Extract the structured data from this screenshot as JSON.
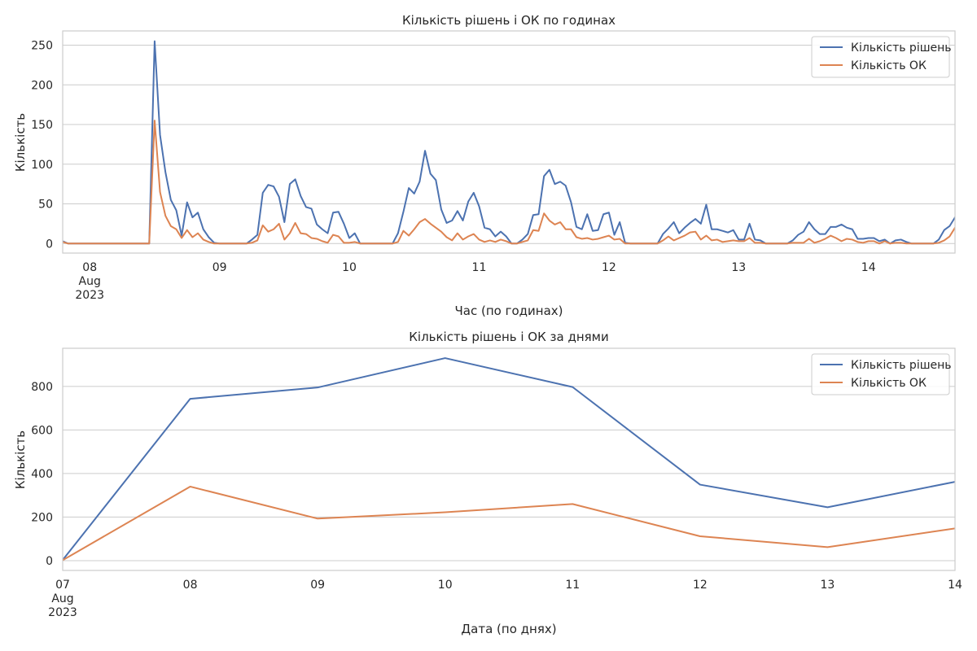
{
  "chart_data": [
    {
      "type": "line",
      "title": "Кількість рішень і ОК по годинах",
      "xlabel": "Час (по годинах)",
      "ylabel": "Кількість",
      "x_start": "2023-08-07 19:00",
      "x_step": "1 hour",
      "xlim": [
        "2023-08-07 19:00",
        "2023-08-14 16:00"
      ],
      "ylim": [
        -12,
        268
      ],
      "yticks": [
        0,
        50,
        100,
        150,
        200,
        250
      ],
      "xticks": [
        {
          "x": "2023-08-08 00:00",
          "label": "08",
          "sublabel1": "Aug",
          "sublabel2": "2023"
        },
        {
          "x": "2023-08-09 00:00",
          "label": "09"
        },
        {
          "x": "2023-08-10 00:00",
          "label": "10"
        },
        {
          "x": "2023-08-11 00:00",
          "label": "11"
        },
        {
          "x": "2023-08-12 00:00",
          "label": "12"
        },
        {
          "x": "2023-08-13 00:00",
          "label": "13"
        },
        {
          "x": "2023-08-14 00:00",
          "label": "14"
        }
      ],
      "grid": "horizontal",
      "legend_position": "top-right",
      "series": [
        {
          "name": "Кількість рішень",
          "color": "#4c72b0",
          "values": [
            3,
            0,
            0,
            0,
            0,
            0,
            0,
            0,
            0,
            0,
            0,
            0,
            0,
            0,
            0,
            0,
            0,
            255,
            137,
            90,
            55,
            42,
            10,
            52,
            33,
            39,
            18,
            8,
            1,
            0,
            0,
            0,
            0,
            0,
            0,
            5,
            11,
            64,
            74,
            72,
            59,
            27,
            75,
            81,
            60,
            46,
            44,
            24,
            18,
            13,
            39,
            40,
            25,
            7,
            13,
            0,
            0,
            0,
            0,
            0,
            0,
            0,
            13,
            40,
            70,
            63,
            78,
            117,
            88,
            80,
            43,
            26,
            29,
            41,
            29,
            53,
            64,
            47,
            20,
            18,
            9,
            15,
            9,
            0,
            0,
            5,
            12,
            36,
            37,
            85,
            93,
            75,
            78,
            73,
            52,
            21,
            18,
            37,
            16,
            17,
            37,
            39,
            11,
            27,
            1,
            0,
            0,
            0,
            0,
            0,
            0,
            12,
            19,
            27,
            13,
            20,
            26,
            31,
            25,
            49,
            18,
            18,
            16,
            14,
            17,
            5,
            5,
            25,
            5,
            4,
            0,
            0,
            0,
            0,
            0,
            4,
            11,
            15,
            27,
            18,
            12,
            12,
            21,
            21,
            24,
            20,
            18,
            6,
            6,
            7,
            7,
            3,
            5,
            0,
            4,
            5,
            2,
            0,
            0,
            0,
            0,
            0,
            5,
            17,
            22,
            33,
            46,
            52,
            28,
            48,
            41,
            29,
            29,
            5
          ]
        },
        {
          "name": "Кількість ОК",
          "color": "#dd8452",
          "values": [
            2,
            0,
            0,
            0,
            0,
            0,
            0,
            0,
            0,
            0,
            0,
            0,
            0,
            0,
            0,
            0,
            0,
            155,
            65,
            35,
            22,
            18,
            7,
            17,
            8,
            13,
            5,
            2,
            0,
            0,
            0,
            0,
            0,
            0,
            0,
            1,
            4,
            23,
            15,
            18,
            25,
            5,
            13,
            26,
            13,
            12,
            7,
            6,
            3,
            1,
            11,
            9,
            1,
            1,
            2,
            0,
            0,
            0,
            0,
            0,
            0,
            0,
            2,
            16,
            10,
            18,
            27,
            31,
            25,
            20,
            15,
            8,
            4,
            13,
            5,
            9,
            12,
            5,
            2,
            4,
            2,
            5,
            3,
            0,
            0,
            2,
            4,
            17,
            16,
            38,
            29,
            24,
            27,
            18,
            18,
            8,
            6,
            7,
            5,
            6,
            8,
            10,
            5,
            6,
            0,
            0,
            0,
            0,
            0,
            0,
            0,
            4,
            9,
            4,
            7,
            10,
            14,
            15,
            5,
            10,
            4,
            5,
            2,
            3,
            4,
            3,
            3,
            7,
            1,
            1,
            0,
            0,
            0,
            0,
            0,
            1,
            1,
            1,
            6,
            1,
            3,
            6,
            10,
            7,
            3,
            6,
            5,
            2,
            1,
            3,
            3,
            0,
            3,
            0,
            1,
            1,
            0,
            0,
            0,
            0,
            0,
            0,
            1,
            4,
            9,
            20,
            16,
            26,
            14,
            20,
            13,
            6,
            9,
            3
          ]
        }
      ]
    },
    {
      "type": "line",
      "title": "Кількість рішень і ОК за днями",
      "xlabel": "Дата (по днях)",
      "ylabel": "Кількість",
      "x": [
        "2023-08-07",
        "2023-08-08",
        "2023-08-09",
        "2023-08-10",
        "2023-08-11",
        "2023-08-12",
        "2023-08-13",
        "2023-08-14"
      ],
      "xlim": [
        "2023-08-07",
        "2023-08-14"
      ],
      "ylim": [
        -45,
        975
      ],
      "yticks": [
        0,
        200,
        400,
        600,
        800
      ],
      "xticks": [
        {
          "x": "2023-08-07",
          "label": "07",
          "sublabel1": "Aug",
          "sublabel2": "2023"
        },
        {
          "x": "2023-08-08",
          "label": "08"
        },
        {
          "x": "2023-08-09",
          "label": "09"
        },
        {
          "x": "2023-08-10",
          "label": "10"
        },
        {
          "x": "2023-08-11",
          "label": "11"
        },
        {
          "x": "2023-08-12",
          "label": "12"
        },
        {
          "x": "2023-08-13",
          "label": "13"
        },
        {
          "x": "2023-08-14",
          "label": "14"
        }
      ],
      "grid": "horizontal",
      "legend_position": "top-right",
      "series": [
        {
          "name": "Кількість рішень",
          "color": "#4c72b0",
          "values": [
            3,
            743,
            795,
            930,
            797,
            349,
            245,
            362
          ]
        },
        {
          "name": "Кількість ОК",
          "color": "#dd8452",
          "values": [
            2,
            340,
            193,
            222,
            260,
            112,
            62,
            148
          ]
        }
      ]
    }
  ]
}
